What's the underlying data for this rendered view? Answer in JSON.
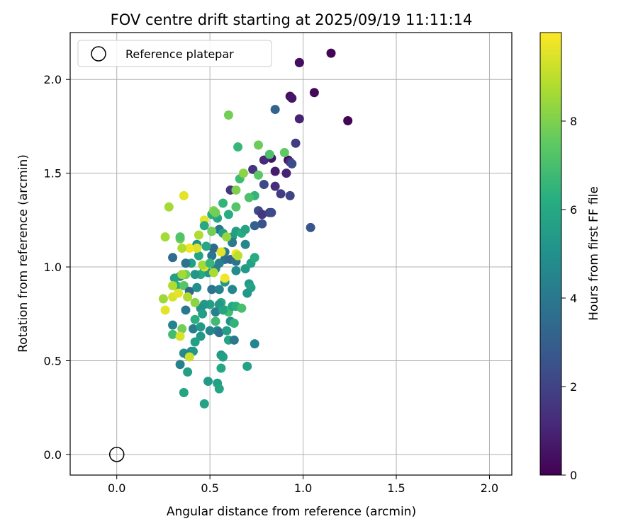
{
  "chart_data": {
    "type": "scatter",
    "title": "FOV centre drift starting at 2025/09/19 11:11:14",
    "xlabel": "Angular distance from reference (arcmin)",
    "ylabel": "Rotation from reference (arcmin)",
    "xlim": [
      -0.25,
      2.12
    ],
    "ylim": [
      -0.11,
      2.25
    ],
    "xticks": [
      "0.0",
      "0.5",
      "1.0",
      "1.5",
      "2.0"
    ],
    "xtick_values": [
      0.0,
      0.5,
      1.0,
      1.5,
      2.0
    ],
    "yticks": [
      "0.0",
      "0.5",
      "1.0",
      "1.5",
      "2.0"
    ],
    "ytick_values": [
      0.0,
      0.5,
      1.0,
      1.5,
      2.0
    ],
    "grid": true,
    "legend": {
      "placement": "top-left",
      "entries": [
        "Reference platepar"
      ]
    },
    "reference_point": {
      "x": 0.0,
      "y": 0.0
    },
    "colorbar": {
      "label": "Hours from first FF file",
      "colormap": "viridis",
      "range": [
        0,
        10
      ],
      "ticks": [
        "0",
        "2",
        "4",
        "6",
        "8"
      ],
      "tick_values": [
        0,
        2,
        4,
        6,
        8
      ]
    },
    "points": [
      [
        1.15,
        2.14,
        0.1
      ],
      [
        0.98,
        2.09,
        0.2
      ],
      [
        0.98,
        2.09,
        0.4
      ],
      [
        1.06,
        1.93,
        0.2
      ],
      [
        0.93,
        1.91,
        0.4
      ],
      [
        0.94,
        1.9,
        0.6
      ],
      [
        1.24,
        1.78,
        0.1
      ],
      [
        0.98,
        1.79,
        1.0
      ],
      [
        0.85,
        1.84,
        3.2
      ],
      [
        0.96,
        1.66,
        1.8
      ],
      [
        0.92,
        1.57,
        0.3
      ],
      [
        0.93,
        1.56,
        1.4
      ],
      [
        0.94,
        1.55,
        2.3
      ],
      [
        0.83,
        1.58,
        0.5
      ],
      [
        0.79,
        1.57,
        1.2
      ],
      [
        0.73,
        1.52,
        1.5
      ],
      [
        0.85,
        1.51,
        0.8
      ],
      [
        0.91,
        1.5,
        1.0
      ],
      [
        0.79,
        1.44,
        2.2
      ],
      [
        0.85,
        1.43,
        1.3
      ],
      [
        0.88,
        1.39,
        1.8
      ],
      [
        0.93,
        1.38,
        2.0
      ],
      [
        0.76,
        1.3,
        2.2
      ],
      [
        0.78,
        1.28,
        1.6
      ],
      [
        0.82,
        1.29,
        2.0
      ],
      [
        0.83,
        1.29,
        2.3
      ],
      [
        0.78,
        1.23,
        2.5
      ],
      [
        0.74,
        1.22,
        3.0
      ],
      [
        1.04,
        1.21,
        2.6
      ],
      [
        0.61,
        1.41,
        1.5
      ],
      [
        0.66,
        1.47,
        6.8
      ],
      [
        0.74,
        1.38,
        6.5
      ],
      [
        0.71,
        1.37,
        7.1
      ],
      [
        0.64,
        1.32,
        7.3
      ],
      [
        0.57,
        1.34,
        6.5
      ],
      [
        0.6,
        1.28,
        6.2
      ],
      [
        0.54,
        1.26,
        5.9
      ],
      [
        0.51,
        1.28,
        6.2
      ],
      [
        0.55,
        1.2,
        3.9
      ],
      [
        0.57,
        1.18,
        5.6
      ],
      [
        0.62,
        1.16,
        5.3
      ],
      [
        0.64,
        1.19,
        5.6
      ],
      [
        0.67,
        1.18,
        6.1
      ],
      [
        0.69,
        1.2,
        5.8
      ],
      [
        0.62,
        1.13,
        4.1
      ],
      [
        0.69,
        1.12,
        4.6
      ],
      [
        0.58,
        1.04,
        3.6
      ],
      [
        0.61,
        1.04,
        3.4
      ],
      [
        0.64,
        1.03,
        3.8
      ],
      [
        0.55,
        1.02,
        4.3
      ],
      [
        0.58,
        1.08,
        4.1
      ],
      [
        0.52,
        1.1,
        3.4
      ],
      [
        0.48,
        1.11,
        5.9
      ],
      [
        0.43,
        1.12,
        5.0
      ],
      [
        0.44,
        1.06,
        5.8
      ],
      [
        0.51,
        1.06,
        3.9
      ],
      [
        0.47,
        0.98,
        4.4
      ],
      [
        0.53,
        0.99,
        4.3
      ],
      [
        0.49,
        0.97,
        5.2
      ],
      [
        0.45,
        0.96,
        6.0
      ],
      [
        0.4,
        1.02,
        5.6
      ],
      [
        0.37,
        1.02,
        3.8
      ],
      [
        0.3,
        1.05,
        3.5
      ],
      [
        0.42,
        0.96,
        5.2
      ],
      [
        0.34,
        0.95,
        4.6
      ],
      [
        0.37,
        0.96,
        7.8
      ],
      [
        0.31,
        0.94,
        5.6
      ],
      [
        0.32,
        0.9,
        6.2
      ],
      [
        0.36,
        0.9,
        7.3
      ],
      [
        0.39,
        0.87,
        3.3
      ],
      [
        0.43,
        0.89,
        4.9
      ],
      [
        0.51,
        0.88,
        3.8
      ],
      [
        0.55,
        0.88,
        4.4
      ],
      [
        0.58,
        0.92,
        5.3
      ],
      [
        0.64,
        0.98,
        4.8
      ],
      [
        0.69,
        0.99,
        5.4
      ],
      [
        0.72,
        1.02,
        5.7
      ],
      [
        0.74,
        1.05,
        6.1
      ],
      [
        0.71,
        0.91,
        5.4
      ],
      [
        0.72,
        0.89,
        5.8
      ],
      [
        0.7,
        0.86,
        5.3
      ],
      [
        0.62,
        0.88,
        4.6
      ],
      [
        0.56,
        0.81,
        6.1
      ],
      [
        0.55,
        0.8,
        5.3
      ],
      [
        0.58,
        0.77,
        6.5
      ],
      [
        0.6,
        0.76,
        6.9
      ],
      [
        0.62,
        0.79,
        5.9
      ],
      [
        0.64,
        0.79,
        6.3
      ],
      [
        0.67,
        0.78,
        7.0
      ],
      [
        0.5,
        0.8,
        5.6
      ],
      [
        0.47,
        0.8,
        5.3
      ],
      [
        0.45,
        0.78,
        5.1
      ],
      [
        0.46,
        0.75,
        5.6
      ],
      [
        0.42,
        0.72,
        6.3
      ],
      [
        0.41,
        0.67,
        4.2
      ],
      [
        0.45,
        0.68,
        5.4
      ],
      [
        0.53,
        0.71,
        6.8
      ],
      [
        0.53,
        0.76,
        4.3
      ],
      [
        0.57,
        0.77,
        5.8
      ],
      [
        0.61,
        0.71,
        5.1
      ],
      [
        0.63,
        0.7,
        6.5
      ],
      [
        0.54,
        0.66,
        4.4
      ],
      [
        0.5,
        0.66,
        4.6
      ],
      [
        0.55,
        0.65,
        3.7
      ],
      [
        0.59,
        0.66,
        5.6
      ],
      [
        0.6,
        0.61,
        5.8
      ],
      [
        0.63,
        0.61,
        4.0
      ],
      [
        0.74,
        0.59,
        4.5
      ],
      [
        0.45,
        0.63,
        5.3
      ],
      [
        0.42,
        0.6,
        5.6
      ],
      [
        0.4,
        0.55,
        4.9
      ],
      [
        0.41,
        0.55,
        5.3
      ],
      [
        0.36,
        0.54,
        4.8
      ],
      [
        0.38,
        0.53,
        4.5
      ],
      [
        0.39,
        0.52,
        9.2
      ],
      [
        0.56,
        0.53,
        5.3
      ],
      [
        0.57,
        0.52,
        5.6
      ],
      [
        0.34,
        0.48,
        4.3
      ],
      [
        0.38,
        0.44,
        5.6
      ],
      [
        0.56,
        0.46,
        5.9
      ],
      [
        0.7,
        0.47,
        5.7
      ],
      [
        0.49,
        0.39,
        5.4
      ],
      [
        0.54,
        0.38,
        5.6
      ],
      [
        0.55,
        0.35,
        5.8
      ],
      [
        0.36,
        0.33,
        5.8
      ],
      [
        0.47,
        0.27,
        5.7
      ],
      [
        0.37,
        0.77,
        4.0
      ],
      [
        0.35,
        0.67,
        7.8
      ],
      [
        0.3,
        0.64,
        6.9
      ],
      [
        0.34,
        0.63,
        9.4
      ],
      [
        0.3,
        0.69,
        4.4
      ],
      [
        0.26,
        0.77,
        9.6
      ],
      [
        0.25,
        0.83,
        8.5
      ],
      [
        0.3,
        0.84,
        9.4
      ],
      [
        0.33,
        0.86,
        9.6
      ],
      [
        0.38,
        0.84,
        8.8
      ],
      [
        0.42,
        0.81,
        8.2
      ],
      [
        0.3,
        0.9,
        8.8
      ],
      [
        0.35,
        0.96,
        8.6
      ],
      [
        0.47,
        1.0,
        9.5
      ],
      [
        0.52,
        0.97,
        8.7
      ],
      [
        0.58,
        0.94,
        9.8
      ],
      [
        0.46,
        1.01,
        8.6
      ],
      [
        0.5,
        1.02,
        6.6
      ],
      [
        0.43,
        1.1,
        9.5
      ],
      [
        0.39,
        1.1,
        9.8
      ],
      [
        0.35,
        1.1,
        8.8
      ],
      [
        0.34,
        1.15,
        7.8
      ],
      [
        0.34,
        1.16,
        7.2
      ],
      [
        0.26,
        1.16,
        8.6
      ],
      [
        0.44,
        1.17,
        8.8
      ],
      [
        0.47,
        1.25,
        9.6
      ],
      [
        0.47,
        1.22,
        6.0
      ],
      [
        0.51,
        1.19,
        7.8
      ],
      [
        0.52,
        1.3,
        8.0
      ],
      [
        0.53,
        1.29,
        7.8
      ],
      [
        0.59,
        1.16,
        8.4
      ],
      [
        0.64,
        1.07,
        9.8
      ],
      [
        0.56,
        1.08,
        9.6
      ],
      [
        0.65,
        1.06,
        9.0
      ],
      [
        0.28,
        1.32,
        8.6
      ],
      [
        0.36,
        1.38,
        9.6
      ],
      [
        0.64,
        1.41,
        8.0
      ],
      [
        0.68,
        1.5,
        8.2
      ],
      [
        0.76,
        1.49,
        7.4
      ],
      [
        0.82,
        1.6,
        7.1
      ],
      [
        0.9,
        1.61,
        7.5
      ],
      [
        0.76,
        1.65,
        7.7
      ],
      [
        0.65,
        1.64,
        6.6
      ],
      [
        0.6,
        1.81,
        7.8
      ]
    ]
  }
}
